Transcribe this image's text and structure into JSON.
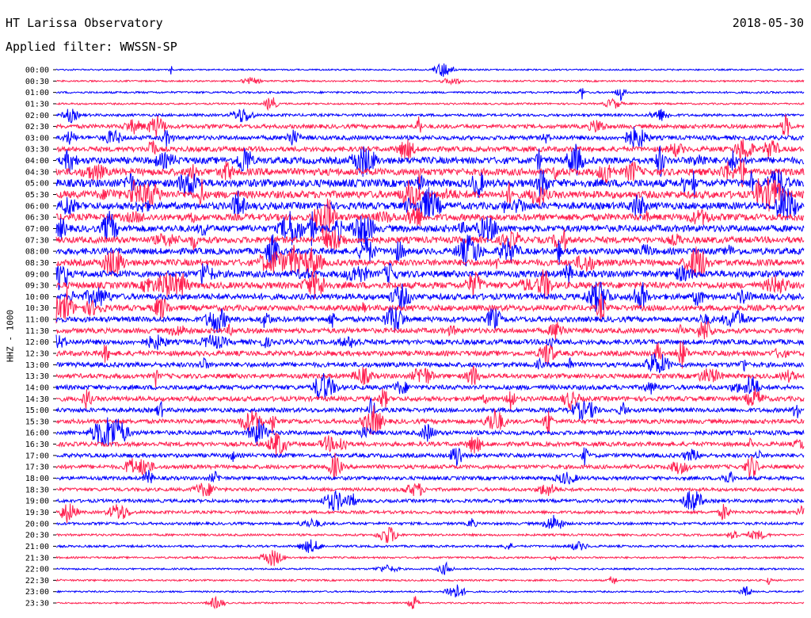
{
  "header": {
    "title": "HT Larissa Observatory",
    "date": "2018-05-30",
    "filter_label": "Applied filter: WWSSN-SP"
  },
  "chart_data": {
    "type": "line",
    "title": "HT Larissa Observatory",
    "ylabel": "HHZ - 1000",
    "date": "2018-05-30",
    "filter": "WWSSN-SP",
    "colors": [
      "#0000ff",
      "#ff1f4f"
    ],
    "row_labels": [
      "00:00",
      "00:30",
      "01:00",
      "01:30",
      "02:00",
      "02:30",
      "03:00",
      "03:30",
      "04:00",
      "04:30",
      "05:00",
      "05:30",
      "06:00",
      "06:30",
      "07:00",
      "07:30",
      "08:00",
      "08:30",
      "09:00",
      "09:30",
      "10:00",
      "10:30",
      "11:00",
      "11:30",
      "12:00",
      "12:30",
      "13:00",
      "13:30",
      "14:00",
      "14:30",
      "15:00",
      "15:30",
      "16:00",
      "16:30",
      "17:00",
      "17:30",
      "18:00",
      "18:30",
      "19:00",
      "19:30",
      "20:00",
      "20:30",
      "21:00",
      "21:30",
      "22:00",
      "22:30",
      "23:00",
      "23:30"
    ],
    "row_activity": [
      0.08,
      0.1,
      0.15,
      0.12,
      0.25,
      0.45,
      0.5,
      0.6,
      0.85,
      0.9,
      1.0,
      0.95,
      0.9,
      0.85,
      0.85,
      0.8,
      0.8,
      0.8,
      0.85,
      0.8,
      0.75,
      0.7,
      0.65,
      0.6,
      0.6,
      0.6,
      0.55,
      0.55,
      0.55,
      0.55,
      0.5,
      0.5,
      0.5,
      0.5,
      0.45,
      0.45,
      0.4,
      0.35,
      0.35,
      0.3,
      0.25,
      0.18,
      0.18,
      0.14,
      0.12,
      0.12,
      0.1,
      0.08
    ],
    "grid": false,
    "legend": "none"
  }
}
